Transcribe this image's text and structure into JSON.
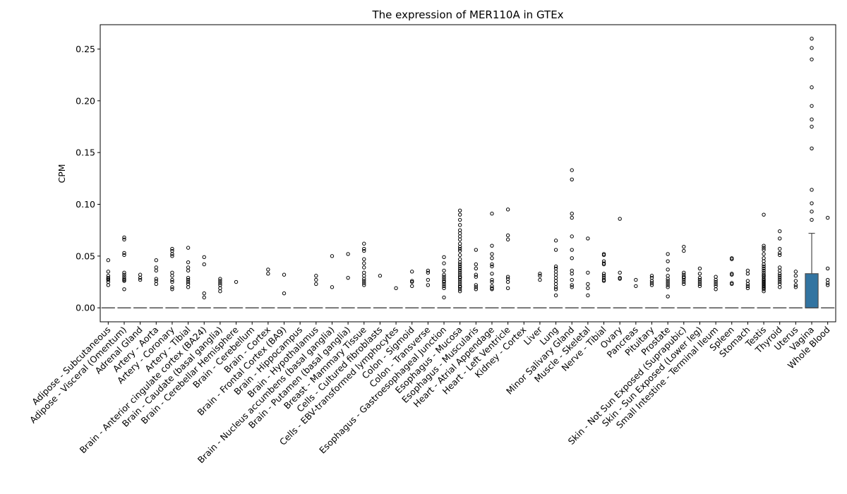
{
  "chart_data": {
    "type": "box",
    "title": "The expression of MER110A in GTEx",
    "xlabel": "",
    "ylabel": "CPM",
    "ylim": [
      -0.0135,
      0.2735
    ],
    "yticks": [
      0.0,
      0.05,
      0.1,
      0.15,
      0.2,
      0.25
    ],
    "ytick_labels": [
      "0.00",
      "0.05",
      "0.10",
      "0.15",
      "0.20",
      "0.25"
    ],
    "grid": false,
    "box_color": "#3274a1",
    "categories": [
      "Adipose - Subcutaneous",
      "Adipose - Visceral (Omentum)",
      "Adrenal Gland",
      "Artery - Aorta",
      "Artery - Coronary",
      "Artery - Tibial",
      "Brain - Anterior cingulate cortex (BA24)",
      "Brain - Caudate (basal ganglia)",
      "Brain - Cerebellar Hemisphere",
      "Brain - Cerebellum",
      "Brain - Cortex",
      "Brain - Frontal Cortex (BA9)",
      "Brain - Hippocampus",
      "Brain - Hypothalamus",
      "Brain - Nucleus accumbens (basal ganglia)",
      "Brain - Putamen (basal ganglia)",
      "Breast - Mammary Tissue",
      "Cells - Cultured fibroblasts",
      "Cells - EBV-transformed lymphocytes",
      "Colon - Sigmoid",
      "Colon - Transverse",
      "Esophagus - Gastroesophageal Junction",
      "Esophagus - Mucosa",
      "Esophagus - Muscularis",
      "Heart - Atrial Appendage",
      "Heart - Left Ventricle",
      "Kidney - Cortex",
      "Liver",
      "Lung",
      "Minor Salivary Gland",
      "Muscle - Skeletal",
      "Nerve - Tibial",
      "Ovary",
      "Pancreas",
      "Pituitary",
      "Prostate",
      "Skin - Not Sun Exposed (Suprapubic)",
      "Skin - Sun Exposed (Lower leg)",
      "Small Intestine - Terminal Ileum",
      "Spleen",
      "Stomach",
      "Testis",
      "Thyroid",
      "Uterus",
      "Vagina",
      "Whole Blood"
    ],
    "boxes": [
      {
        "q1": 0,
        "median": 0,
        "q3": 0,
        "whisker_low": 0,
        "whisker_high": 0,
        "outliers": [
          0.046,
          0.035,
          0.031,
          0.029,
          0.028,
          0.027,
          0.025,
          0.022
        ]
      },
      {
        "q1": 0,
        "median": 0,
        "q3": 0,
        "whisker_low": 0,
        "whisker_high": 0,
        "outliers": [
          0.068,
          0.066,
          0.053,
          0.051,
          0.034,
          0.032,
          0.03,
          0.028,
          0.027,
          0.026,
          0.018
        ]
      },
      {
        "q1": 0,
        "median": 0,
        "q3": 0,
        "whisker_low": 0,
        "whisker_high": 0,
        "outliers": [
          0.032,
          0.029,
          0.027
        ]
      },
      {
        "q1": 0,
        "median": 0,
        "q3": 0,
        "whisker_low": 0,
        "whisker_high": 0,
        "outliers": [
          0.046,
          0.039,
          0.036,
          0.028,
          0.026,
          0.023
        ]
      },
      {
        "q1": 0,
        "median": 0,
        "q3": 0,
        "whisker_low": 0,
        "whisker_high": 0,
        "outliers": [
          0.057,
          0.055,
          0.052,
          0.05,
          0.034,
          0.031,
          0.027,
          0.025,
          0.02,
          0.018
        ]
      },
      {
        "q1": 0,
        "median": 0,
        "q3": 0,
        "whisker_low": 0,
        "whisker_high": 0,
        "outliers": [
          0.058,
          0.044,
          0.039,
          0.036,
          0.029,
          0.027,
          0.025,
          0.023,
          0.02
        ]
      },
      {
        "q1": 0,
        "median": 0,
        "q3": 0,
        "whisker_low": 0,
        "whisker_high": 0,
        "outliers": [
          0.049,
          0.042,
          0.014,
          0.01
        ]
      },
      {
        "q1": 0,
        "median": 0,
        "q3": 0,
        "whisker_low": 0,
        "whisker_high": 0,
        "outliers": [
          0.028,
          0.026,
          0.024,
          0.022,
          0.019,
          0.016
        ]
      },
      {
        "q1": 0,
        "median": 0,
        "q3": 0,
        "whisker_low": 0,
        "whisker_high": 0,
        "outliers": [
          0.025
        ]
      },
      {
        "q1": 0,
        "median": 0,
        "q3": 0,
        "whisker_low": 0,
        "whisker_high": 0,
        "outliers": []
      },
      {
        "q1": 0,
        "median": 0,
        "q3": 0,
        "whisker_low": 0,
        "whisker_high": 0,
        "outliers": [
          0.037,
          0.033
        ]
      },
      {
        "q1": 0,
        "median": 0,
        "q3": 0,
        "whisker_low": 0,
        "whisker_high": 0,
        "outliers": [
          0.032,
          0.014
        ]
      },
      {
        "q1": 0,
        "median": 0,
        "q3": 0,
        "whisker_low": 0,
        "whisker_high": 0,
        "outliers": []
      },
      {
        "q1": 0,
        "median": 0,
        "q3": 0,
        "whisker_low": 0,
        "whisker_high": 0,
        "outliers": [
          0.031,
          0.027,
          0.023
        ]
      },
      {
        "q1": 0,
        "median": 0,
        "q3": 0,
        "whisker_low": 0,
        "whisker_high": 0,
        "outliers": [
          0.05,
          0.02
        ]
      },
      {
        "q1": 0,
        "median": 0,
        "q3": 0,
        "whisker_low": 0,
        "whisker_high": 0,
        "outliers": [
          0.052,
          0.029
        ]
      },
      {
        "q1": 0,
        "median": 0,
        "q3": 0,
        "whisker_low": 0,
        "whisker_high": 0,
        "outliers": [
          0.062,
          0.057,
          0.055,
          0.047,
          0.043,
          0.039,
          0.034,
          0.031,
          0.028,
          0.026,
          0.024,
          0.022
        ]
      },
      {
        "q1": 0,
        "median": 0,
        "q3": 0,
        "whisker_low": 0,
        "whisker_high": 0,
        "outliers": [
          0.031
        ]
      },
      {
        "q1": 0,
        "median": 0,
        "q3": 0,
        "whisker_low": 0,
        "whisker_high": 0,
        "outliers": [
          0.019
        ]
      },
      {
        "q1": 0,
        "median": 0,
        "q3": 0,
        "whisker_low": 0,
        "whisker_high": 0,
        "outliers": [
          0.035,
          0.026,
          0.025,
          0.021
        ]
      },
      {
        "q1": 0,
        "median": 0,
        "q3": 0,
        "whisker_low": 0,
        "whisker_high": 0,
        "outliers": [
          0.036,
          0.034,
          0.027,
          0.022
        ]
      },
      {
        "q1": 0,
        "median": 0,
        "q3": 0,
        "whisker_low": 0,
        "whisker_high": 0,
        "outliers": [
          0.049,
          0.043,
          0.036,
          0.032,
          0.03,
          0.028,
          0.026,
          0.025,
          0.023,
          0.021,
          0.019,
          0.01
        ]
      },
      {
        "q1": 0,
        "median": 0,
        "q3": 0,
        "whisker_low": 0,
        "whisker_high": 0,
        "outliers": [
          0.094,
          0.09,
          0.085,
          0.08,
          0.075,
          0.072,
          0.069,
          0.066,
          0.062,
          0.059,
          0.057,
          0.055,
          0.051,
          0.047,
          0.044,
          0.042,
          0.04,
          0.038,
          0.036,
          0.034,
          0.032,
          0.03,
          0.029,
          0.027,
          0.025,
          0.023,
          0.021,
          0.02,
          0.018,
          0.016
        ]
      },
      {
        "q1": 0,
        "median": 0,
        "q3": 0,
        "whisker_low": 0,
        "whisker_high": 0,
        "outliers": [
          0.056,
          0.042,
          0.038,
          0.032,
          0.03,
          0.022,
          0.02,
          0.018
        ]
      },
      {
        "q1": 0,
        "median": 0,
        "q3": 0,
        "whisker_low": 0,
        "whisker_high": 0,
        "outliers": [
          0.091,
          0.06,
          0.052,
          0.048,
          0.042,
          0.04,
          0.033,
          0.027,
          0.025,
          0.021,
          0.019,
          0.018
        ]
      },
      {
        "q1": 0,
        "median": 0,
        "q3": 0,
        "whisker_low": 0,
        "whisker_high": 0,
        "outliers": [
          0.095,
          0.07,
          0.066,
          0.03,
          0.028,
          0.025,
          0.019
        ]
      },
      {
        "q1": 0,
        "median": 0,
        "q3": 0,
        "whisker_low": 0,
        "whisker_high": 0,
        "outliers": []
      },
      {
        "q1": 0,
        "median": 0,
        "q3": 0,
        "whisker_low": 0,
        "whisker_high": 0,
        "outliers": [
          0.033,
          0.031,
          0.027
        ]
      },
      {
        "q1": 0,
        "median": 0,
        "q3": 0,
        "whisker_low": 0,
        "whisker_high": 0,
        "outliers": [
          0.065,
          0.056,
          0.04,
          0.038,
          0.035,
          0.032,
          0.029,
          0.026,
          0.023,
          0.02,
          0.018,
          0.012
        ]
      },
      {
        "q1": 0,
        "median": 0,
        "q3": 0,
        "whisker_low": 0,
        "whisker_high": 0,
        "outliers": [
          0.133,
          0.124,
          0.091,
          0.087,
          0.069,
          0.056,
          0.048,
          0.036,
          0.033,
          0.027,
          0.022,
          0.02
        ]
      },
      {
        "q1": 0,
        "median": 0,
        "q3": 0,
        "whisker_low": 0,
        "whisker_high": 0,
        "outliers": [
          0.067,
          0.034,
          0.023,
          0.019,
          0.012
        ]
      },
      {
        "q1": 0,
        "median": 0,
        "q3": 0,
        "whisker_low": 0,
        "whisker_high": 0,
        "outliers": [
          0.052,
          0.051,
          0.045,
          0.043,
          0.042,
          0.033,
          0.031,
          0.029,
          0.027,
          0.026
        ]
      },
      {
        "q1": 0,
        "median": 0,
        "q3": 0,
        "whisker_low": 0,
        "whisker_high": 0,
        "outliers": [
          0.086,
          0.034,
          0.029,
          0.028
        ]
      },
      {
        "q1": 0,
        "median": 0,
        "q3": 0,
        "whisker_low": 0,
        "whisker_high": 0,
        "outliers": [
          0.027,
          0.021
        ]
      },
      {
        "q1": 0,
        "median": 0,
        "q3": 0,
        "whisker_low": 0,
        "whisker_high": 0,
        "outliers": [
          0.031,
          0.029,
          0.026,
          0.024,
          0.022
        ]
      },
      {
        "q1": 0,
        "median": 0,
        "q3": 0,
        "whisker_low": 0,
        "whisker_high": 0,
        "outliers": [
          0.052,
          0.045,
          0.037,
          0.031,
          0.028,
          0.026,
          0.024,
          0.022,
          0.02,
          0.011
        ]
      },
      {
        "q1": 0,
        "median": 0,
        "q3": 0,
        "whisker_low": 0,
        "whisker_high": 0,
        "outliers": [
          0.059,
          0.055,
          0.034,
          0.032,
          0.03,
          0.029,
          0.027,
          0.025,
          0.023
        ]
      },
      {
        "q1": 0,
        "median": 0,
        "q3": 0,
        "whisker_low": 0,
        "whisker_high": 0,
        "outliers": [
          0.038,
          0.033,
          0.029,
          0.027,
          0.025,
          0.023,
          0.021
        ]
      },
      {
        "q1": 0,
        "median": 0,
        "q3": 0,
        "whisker_low": 0,
        "whisker_high": 0,
        "outliers": [
          0.03,
          0.027,
          0.025,
          0.023,
          0.021,
          0.018
        ]
      },
      {
        "q1": 0,
        "median": 0,
        "q3": 0,
        "whisker_low": 0,
        "whisker_high": 0,
        "outliers": [
          0.048,
          0.047,
          0.033,
          0.032,
          0.024,
          0.023
        ]
      },
      {
        "q1": 0,
        "median": 0,
        "q3": 0,
        "whisker_low": 0,
        "whisker_high": 0,
        "outliers": [
          0.036,
          0.033,
          0.026,
          0.023,
          0.021,
          0.019
        ]
      },
      {
        "q1": 0,
        "median": 0,
        "q3": 0,
        "whisker_low": 0,
        "whisker_high": 0,
        "outliers": [
          0.09,
          0.06,
          0.058,
          0.056,
          0.052,
          0.048,
          0.045,
          0.042,
          0.04,
          0.038,
          0.036,
          0.034,
          0.032,
          0.031,
          0.03,
          0.028,
          0.027,
          0.026,
          0.025,
          0.024,
          0.023,
          0.022,
          0.021,
          0.02,
          0.019,
          0.018,
          0.016
        ]
      },
      {
        "q1": 0,
        "median": 0,
        "q3": 0,
        "whisker_low": 0,
        "whisker_high": 0,
        "outliers": [
          0.074,
          0.067,
          0.057,
          0.053,
          0.051,
          0.039,
          0.036,
          0.033,
          0.031,
          0.029,
          0.027,
          0.025,
          0.023,
          0.02
        ]
      },
      {
        "q1": 0,
        "median": 0,
        "q3": 0,
        "whisker_low": 0,
        "whisker_high": 0,
        "outliers": [
          0.035,
          0.031,
          0.026,
          0.022,
          0.02
        ]
      },
      {
        "q1": 0,
        "median": 0,
        "q3": 0.033,
        "whisker_low": 0,
        "whisker_high": 0.072,
        "outliers": [
          0.26,
          0.251,
          0.24,
          0.213,
          0.195,
          0.182,
          0.175,
          0.154,
          0.114,
          0.101,
          0.093,
          0.085
        ]
      },
      {
        "q1": 0,
        "median": 0,
        "q3": 0,
        "whisker_low": 0,
        "whisker_high": 0,
        "outliers": [
          0.087,
          0.038,
          0.027,
          0.024,
          0.022
        ]
      }
    ]
  }
}
